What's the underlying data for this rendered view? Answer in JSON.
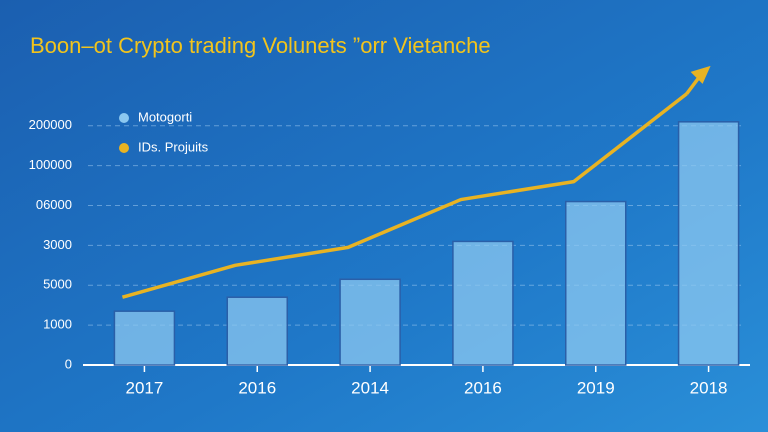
{
  "chart_data": {
    "type": "bar",
    "title": "Boon–ot Crypto trading Volunets ”orr Vietanche",
    "categories": [
      "2017",
      "2016",
      "2014",
      "2016",
      "2019",
      "2018"
    ],
    "series": [
      {
        "name": "Motogorti",
        "color": "#8cc8f0",
        "type": "bar",
        "values": [
          1.35,
          1.7,
          2.15,
          3.1,
          4.1,
          6.1
        ]
      },
      {
        "name": "IDs. Projuits",
        "color": "#e8b323",
        "type": "line",
        "values": [
          1.7,
          2.5,
          2.95,
          4.15,
          4.6,
          6.8
        ]
      }
    ],
    "ylim": [
      0,
      7.5
    ],
    "yticks": [
      {
        "value": 0,
        "label": "0"
      },
      {
        "value": 1,
        "label": "1000"
      },
      {
        "value": 2,
        "label": "5000"
      },
      {
        "value": 3,
        "label": "3000"
      },
      {
        "value": 4,
        "label": "06000"
      },
      {
        "value": 5,
        "label": "100000"
      },
      {
        "value": 6,
        "label": "200000"
      }
    ],
    "grid": true
  }
}
